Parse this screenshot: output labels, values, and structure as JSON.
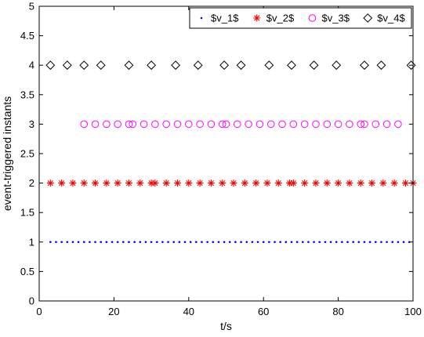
{
  "chart_data": {
    "type": "scatter",
    "xlabel": "t/s",
    "ylabel": "event-triggered instants",
    "xlim": [
      0,
      100
    ],
    "ylim": [
      0,
      5
    ],
    "xticks": [
      0,
      20,
      40,
      60,
      80,
      100
    ],
    "xtick_labels": [
      "0",
      "20",
      "40",
      "60",
      "80",
      "100"
    ],
    "yticks": [
      0,
      0.5,
      1,
      1.5,
      2,
      2.5,
      3,
      3.5,
      4,
      4.5,
      5
    ],
    "ytick_labels": [
      "0",
      "0.5",
      "1",
      "1.5",
      "2",
      "2.5",
      "3",
      "3.5",
      "4",
      "4.5",
      "5"
    ],
    "grid": false,
    "legend_position": "top-right",
    "series": [
      {
        "name": "$v_1$",
        "marker": "dot",
        "color": "#0000ff",
        "y": 1,
        "x": [
          3,
          4.5,
          6,
          7.5,
          9,
          10.5,
          12,
          13.5,
          15,
          16.5,
          18,
          19.5,
          21,
          22.5,
          24,
          25.5,
          27,
          28.5,
          30,
          31.5,
          33,
          34.5,
          36,
          37.5,
          39,
          40.5,
          42,
          43.5,
          45,
          46.5,
          48,
          49.5,
          51,
          52.5,
          54,
          55.5,
          57,
          58.5,
          60,
          61.5,
          63,
          64.5,
          66,
          67.5,
          69,
          70.5,
          72,
          73.5,
          75,
          76.5,
          78,
          79.5,
          81,
          82.5,
          84,
          85.5,
          87,
          88.5,
          90,
          91.5,
          93,
          94.5,
          96,
          97.5,
          99
        ]
      },
      {
        "name": "$v_2$",
        "marker": "asterisk",
        "color": "#ff0000",
        "y": 2,
        "x": [
          3,
          6,
          9,
          12,
          15,
          18,
          21,
          24,
          27,
          30,
          31,
          34,
          37,
          40,
          43,
          46,
          49,
          52,
          55,
          58,
          61,
          64,
          67,
          68,
          71,
          74,
          77,
          80,
          83,
          86,
          89,
          92,
          95,
          98,
          100
        ]
      },
      {
        "name": "$v_3$",
        "marker": "circle",
        "color": "#ff00ff",
        "y": 3,
        "x": [
          12,
          15,
          18,
          21,
          24,
          25,
          28,
          31,
          34,
          37,
          40,
          43,
          46,
          49,
          50,
          53,
          56,
          59,
          62,
          65,
          68,
          71,
          74,
          77,
          80,
          83,
          86,
          87,
          90,
          93,
          96
        ]
      },
      {
        "name": "$v_4$",
        "marker": "diamond",
        "color": "#000000",
        "y": 4,
        "x": [
          3,
          7.5,
          12,
          16.5,
          24,
          30,
          36.5,
          42.5,
          49.5,
          54,
          61.5,
          67.5,
          73.5,
          79.5,
          87,
          91.5,
          99.5
        ]
      }
    ]
  }
}
